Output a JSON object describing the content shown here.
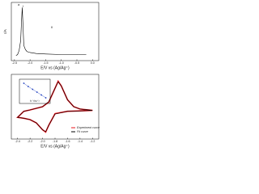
{
  "chart_data": [
    {
      "type": "line",
      "y_label": "I/A",
      "x_label": "E/V vs (Ag/Ag⁺)",
      "annotations": [
        "a",
        "I",
        "II"
      ],
      "xlim": [
        -2.6,
        0.2
      ],
      "xticks": [
        -2.5,
        {
          "value": -2,
          "label": "-2.0"
        },
        -1.5,
        {
          "value": -1,
          "label": "-1.0"
        },
        -0.5,
        {
          "value": 0,
          "label": "0.0"
        }
      ],
      "ylim": [
        -1,
        10.5
      ],
      "x": [
        -2.45,
        -2.4,
        -2.35,
        -2.3,
        -2.28,
        -2.25,
        -2.22,
        -2.2,
        -2.15,
        -2.1,
        -2.0,
        -1.8,
        -1.5,
        -1.0,
        -0.5,
        -0.2
      ],
      "series": [
        {
          "color": "#000000",
          "values": [
            0,
            0.2,
            1,
            3,
            6,
            9.5,
            5,
            2,
            1.2,
            0.8,
            0.6,
            0.4,
            0.3,
            0.2,
            0.2,
            0.2
          ]
        }
      ]
    },
    {
      "type": "line",
      "x_label": "E/V vs (Ag/Ag⁺)",
      "xlim": [
        -2.5,
        -1.1
      ],
      "xticks": [
        -2.4,
        -2.2,
        {
          "value": -2,
          "label": "-2.0"
        },
        -1.8,
        -1.6,
        -1.4,
        -1.2
      ],
      "ylim": [
        -6,
        8
      ],
      "x": [
        -1.2,
        -1.4,
        -1.6,
        -1.8,
        -1.9,
        -1.95,
        -2.0,
        -2.1,
        -2.2,
        -2.3,
        -2.4,
        -2.3,
        -2.2,
        -2.0,
        -1.9,
        -1.8,
        -1.75,
        -1.7,
        -1.6,
        -1.5,
        -1.4,
        -1.2
      ],
      "series": [
        {
          "name": "Experiment curve",
          "color": "#e8141c",
          "values": [
            0.2,
            0.1,
            0,
            -0.5,
            -3,
            -4.5,
            -4,
            -2.5,
            -1.8,
            -1.5,
            -1.3,
            0,
            0.3,
            1,
            2,
            5,
            6.5,
            5.5,
            2.5,
            1,
            0.5,
            0.2
          ]
        },
        {
          "name": "Fit curve",
          "color": "#000000",
          "values": [
            0.2,
            0.1,
            0,
            -0.6,
            -3,
            -4.4,
            -4,
            -2.5,
            -1.8,
            -1.5,
            -1.3,
            0,
            0.3,
            1,
            2.1,
            5,
            6.4,
            5.5,
            2.5,
            1,
            0.5,
            0.2
          ]
        }
      ]
    },
    {
      "type": "scatter",
      "x_label": "t¹ᐟ²/s¹ᐟ²",
      "xlim": [
        0,
        7
      ],
      "ylim": [
        0,
        6
      ],
      "x": [
        1,
        2,
        3,
        4,
        5,
        6
      ],
      "series": [
        {
          "color": "#1f3fbf",
          "values": [
            5,
            4.2,
            3.5,
            2.8,
            2.1,
            1.4
          ]
        }
      ]
    }
  ]
}
